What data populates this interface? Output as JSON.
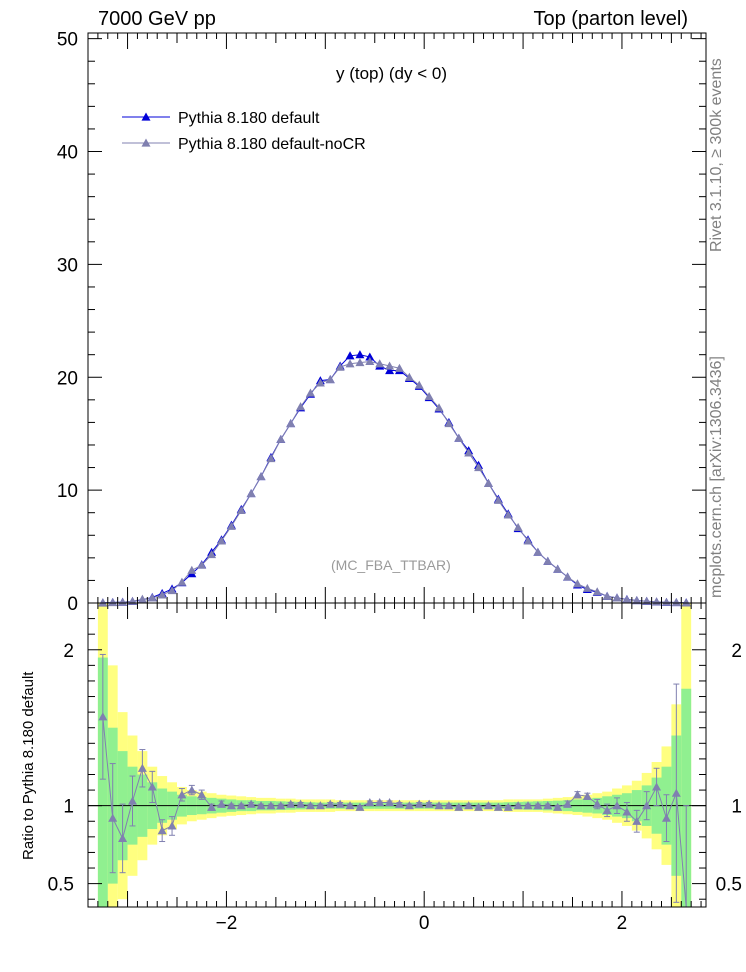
{
  "header": {
    "left": "7000 GeV pp",
    "right": "Top (parton level)"
  },
  "side_labels": {
    "rivet": "Rivet 3.1.10, ≥ 300k events",
    "mcplots": "mcplots.cern.ch [arXiv:1306.3436]"
  },
  "colors": {
    "default": "#0000d8",
    "nocr": "#8080b0",
    "band_yellow": "#ffff80",
    "band_green": "#90f090"
  },
  "chart_data": [
    {
      "type": "line",
      "title": "y (top) (dy < 0)",
      "watermark": "(MC_FBA_TTBAR)",
      "xlim": [
        -3.4,
        2.85
      ],
      "ylim": [
        0,
        50.5
      ],
      "yticks": [
        0,
        10,
        20,
        30,
        40,
        50
      ],
      "legend_position": "top-left",
      "x": [
        -3.25,
        -3.15,
        -3.05,
        -2.95,
        -2.85,
        -2.75,
        -2.65,
        -2.55,
        -2.45,
        -2.35,
        -2.25,
        -2.15,
        -2.05,
        -1.95,
        -1.85,
        -1.75,
        -1.65,
        -1.55,
        -1.45,
        -1.35,
        -1.25,
        -1.15,
        -1.05,
        -0.95,
        -0.85,
        -0.75,
        -0.65,
        -0.55,
        -0.45,
        -0.35,
        -0.25,
        -0.15,
        -0.05,
        0.05,
        0.15,
        0.25,
        0.35,
        0.45,
        0.55,
        0.65,
        0.75,
        0.85,
        0.95,
        1.05,
        1.15,
        1.25,
        1.35,
        1.45,
        1.55,
        1.65,
        1.75,
        1.85,
        1.95,
        2.05,
        2.15,
        2.25,
        2.35,
        2.45,
        2.55,
        2.65
      ],
      "series": [
        {
          "name": "Pythia 8.180 default",
          "values": [
            0.02,
            0.05,
            0.08,
            0.14,
            0.28,
            0.5,
            0.85,
            1.25,
            1.8,
            2.6,
            3.4,
            4.5,
            5.6,
            6.9,
            8.3,
            9.7,
            11.2,
            12.9,
            14.5,
            15.9,
            17.3,
            18.5,
            19.7,
            19.8,
            21.0,
            21.9,
            22.0,
            21.8,
            21.0,
            20.6,
            20.6,
            19.9,
            19.2,
            18.2,
            17.2,
            16.0,
            14.6,
            13.5,
            12.2,
            10.6,
            9.2,
            7.9,
            6.6,
            5.6,
            4.5,
            3.7,
            3.0,
            2.3,
            1.6,
            1.2,
            0.95,
            0.6,
            0.45,
            0.32,
            0.22,
            0.15,
            0.1,
            0.06,
            0.04,
            0.03
          ]
        },
        {
          "name": "Pythia 8.180 default-noCR",
          "values": [
            0.03,
            0.04,
            0.07,
            0.15,
            0.34,
            0.45,
            0.72,
            1.1,
            1.85,
            2.9,
            3.35,
            4.3,
            5.5,
            6.8,
            8.2,
            9.7,
            11.2,
            12.8,
            14.5,
            15.9,
            17.4,
            18.6,
            19.5,
            19.8,
            20.9,
            21.2,
            21.3,
            21.4,
            21.2,
            21.0,
            20.8,
            20.0,
            19.3,
            18.3,
            17.3,
            15.9,
            14.6,
            13.3,
            12.0,
            10.6,
            9.1,
            7.8,
            6.7,
            5.5,
            4.5,
            3.7,
            3.0,
            2.3,
            1.7,
            1.3,
            1.0,
            0.6,
            0.45,
            0.3,
            0.22,
            0.16,
            0.11,
            0.07,
            0.05,
            0.02
          ]
        }
      ]
    },
    {
      "type": "line",
      "ylabel": "Ratio to Pythia 8.180 default",
      "xlim": [
        -3.4,
        2.85
      ],
      "ylim": [
        0.35,
        2.3
      ],
      "yticks": [
        0.5,
        1,
        2
      ],
      "xticks": [
        -2,
        0,
        2
      ],
      "x": [
        -3.25,
        -3.15,
        -3.05,
        -2.95,
        -2.85,
        -2.75,
        -2.65,
        -2.55,
        -2.45,
        -2.35,
        -2.25,
        -2.15,
        -2.05,
        -1.95,
        -1.85,
        -1.75,
        -1.65,
        -1.55,
        -1.45,
        -1.35,
        -1.25,
        -1.15,
        -1.05,
        -0.95,
        -0.85,
        -0.75,
        -0.65,
        -0.55,
        -0.45,
        -0.35,
        -0.25,
        -0.15,
        -0.05,
        0.05,
        0.15,
        0.25,
        0.35,
        0.45,
        0.55,
        0.65,
        0.75,
        0.85,
        0.95,
        1.05,
        1.15,
        1.25,
        1.35,
        1.45,
        1.55,
        1.65,
        1.75,
        1.85,
        1.95,
        2.05,
        2.15,
        2.25,
        2.35,
        2.45,
        2.55,
        2.65
      ],
      "band_yellow": [
        2.5,
        1.9,
        1.6,
        1.45,
        1.35,
        1.25,
        1.19,
        1.15,
        1.12,
        1.1,
        1.09,
        1.08,
        1.07,
        1.065,
        1.06,
        1.055,
        1.05,
        1.05,
        1.045,
        1.045,
        1.04,
        1.04,
        1.04,
        1.04,
        1.035,
        1.035,
        1.035,
        1.035,
        1.035,
        1.035,
        1.035,
        1.035,
        1.035,
        1.035,
        1.035,
        1.035,
        1.035,
        1.035,
        1.035,
        1.035,
        1.035,
        1.04,
        1.04,
        1.04,
        1.04,
        1.045,
        1.05,
        1.055,
        1.06,
        1.07,
        1.08,
        1.09,
        1.11,
        1.13,
        1.16,
        1.21,
        1.28,
        1.38,
        1.65,
        2.5
      ],
      "band_green": [
        1.95,
        1.5,
        1.35,
        1.25,
        1.2,
        1.15,
        1.11,
        1.09,
        1.07,
        1.06,
        1.055,
        1.05,
        1.045,
        1.04,
        1.035,
        1.035,
        1.03,
        1.03,
        1.028,
        1.026,
        1.024,
        1.022,
        1.02,
        1.02,
        1.02,
        1.02,
        1.02,
        1.02,
        1.02,
        1.02,
        1.02,
        1.02,
        1.02,
        1.02,
        1.02,
        1.02,
        1.02,
        1.02,
        1.02,
        1.02,
        1.02,
        1.022,
        1.024,
        1.026,
        1.028,
        1.03,
        1.032,
        1.035,
        1.04,
        1.045,
        1.05,
        1.06,
        1.07,
        1.08,
        1.1,
        1.13,
        1.18,
        1.25,
        1.45,
        1.75
      ],
      "series": [
        {
          "name": "Pythia 8.180 default-noCR",
          "values": [
            1.57,
            0.92,
            0.79,
            1.03,
            1.24,
            1.12,
            0.84,
            0.87,
            1.07,
            1.1,
            1.07,
            0.99,
            1.01,
            1.0,
            1.0,
            1.01,
            1.0,
            1.0,
            1.0,
            1.01,
            1.01,
            1.0,
            1.0,
            1.01,
            1.01,
            1.0,
            0.99,
            1.02,
            1.02,
            1.02,
            1.01,
            1.0,
            1.01,
            1.01,
            1.0,
            1.0,
            0.99,
            1.0,
            0.99,
            1.0,
            0.99,
            0.99,
            1.0,
            1.0,
            1.0,
            1.0,
            0.99,
            1.01,
            1.07,
            1.06,
            1.01,
            0.97,
            1.0,
            0.96,
            0.9,
            1.0,
            1.12,
            0.92,
            1.08,
            0.3
          ],
          "errors": [
            0.4,
            0.35,
            0.22,
            0.16,
            0.12,
            0.1,
            0.07,
            0.06,
            0.04,
            0.03,
            0.03,
            0.02,
            0.02,
            0.01,
            0.01,
            0.01,
            0.01,
            0.01,
            0.01,
            0.01,
            0.01,
            0.01,
            0.01,
            0.01,
            0.01,
            0.01,
            0.01,
            0.01,
            0.01,
            0.01,
            0.01,
            0.01,
            0.01,
            0.01,
            0.01,
            0.01,
            0.01,
            0.01,
            0.01,
            0.01,
            0.01,
            0.01,
            0.01,
            0.01,
            0.01,
            0.01,
            0.01,
            0.02,
            0.02,
            0.02,
            0.03,
            0.04,
            0.05,
            0.06,
            0.07,
            0.09,
            0.12,
            0.15,
            0.7,
            0.7
          ]
        }
      ]
    }
  ]
}
